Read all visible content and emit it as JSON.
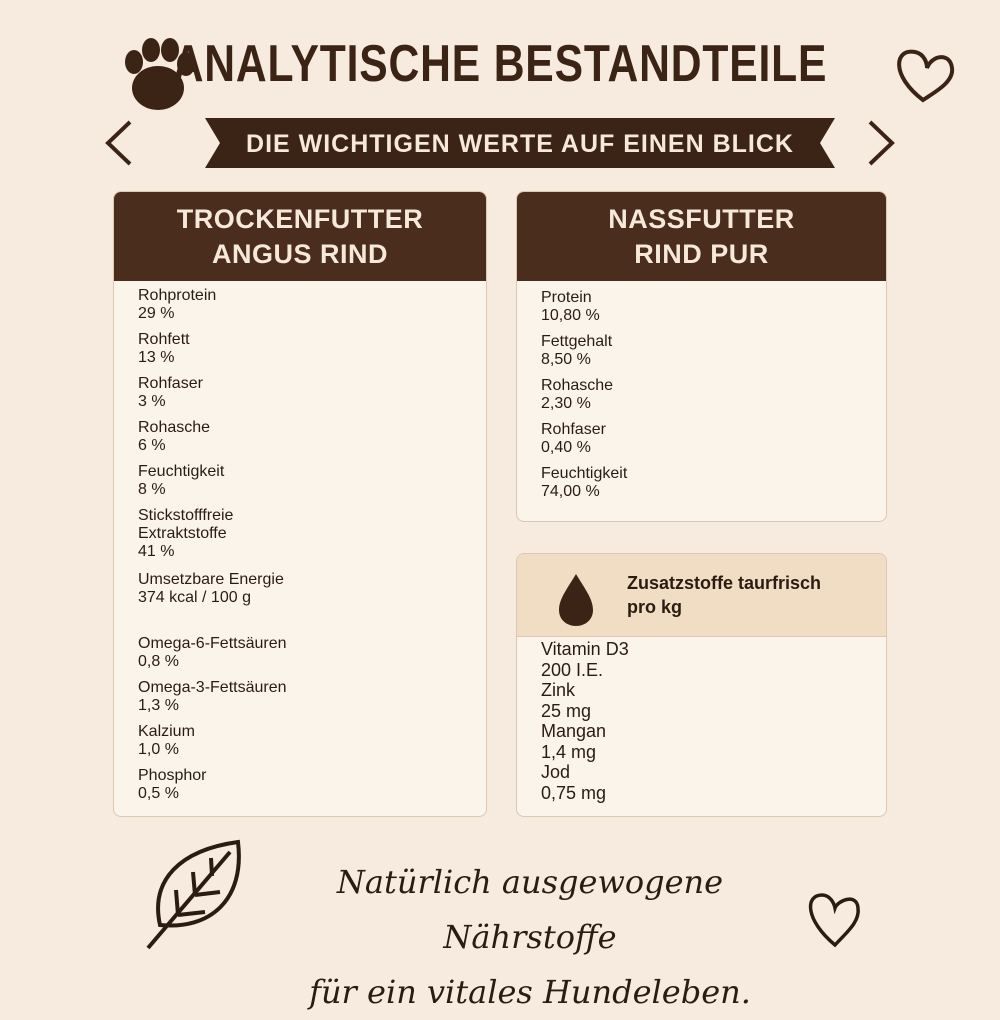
{
  "header": {
    "title": "ANALYTISCHE BESTANDTEILE",
    "subtitle": "DIE WICHTIGEN WERTE AUF EINEN BLICK"
  },
  "dry": {
    "title": [
      "TROCKENFUTTER",
      "ANGUS RIND"
    ],
    "rows": [
      {
        "label": [
          "Rohprotein"
        ],
        "value": "29 %"
      },
      {
        "label": [
          "Rohfett"
        ],
        "value": "13 %"
      },
      {
        "label": [
          "Rohfaser"
        ],
        "value": "3 %"
      },
      {
        "label": [
          "Rohasche"
        ],
        "value": "6 %"
      },
      {
        "label": [
          "Feuchtigkeit"
        ],
        "value": "8 %"
      },
      {
        "label": [
          "Stickstofffreie",
          "Extraktstoffe"
        ],
        "value": "41 %"
      },
      {
        "label": [
          "Umsetzbare Energie",
          "374 kcal / 100 g"
        ]
      },
      {
        "label": [
          "Omega-6-Fettsäuren"
        ],
        "value": "0,8 %"
      },
      {
        "label": [
          "Omega-3-Fettsäuren"
        ],
        "value": "1,3 %"
      },
      {
        "label": [
          "Kalzium"
        ],
        "value": "1,0 %"
      },
      {
        "label": [
          "Phosphor"
        ],
        "value": "0,5 %"
      }
    ]
  },
  "wet": {
    "title": [
      "NASSFUTTER",
      "RIND PUR"
    ],
    "rows": [
      {
        "label": [
          "Protein"
        ],
        "value": "10,80 %"
      },
      {
        "label": [
          "Fettgehalt"
        ],
        "value": "8,50 %"
      },
      {
        "label": [
          "Rohasche"
        ],
        "value": "2,30 %"
      },
      {
        "label": [
          "Rohfaser"
        ],
        "value": "0,40 %"
      },
      {
        "label": [
          "Feuchtigkeit"
        ],
        "value": "74,00 %"
      }
    ]
  },
  "additives": {
    "title": [
      "Zusatzstoffe taurfrisch",
      "pro kg"
    ],
    "rows": [
      {
        "label": [
          "Vitamin D3"
        ],
        "value": "200 I.E."
      },
      {
        "label": [
          "Zink"
        ],
        "value": "25 mg"
      },
      {
        "label": [
          "Mangan"
        ],
        "value": "1,4 mg"
      },
      {
        "label": [
          "Jod"
        ],
        "value": "0,75 mg"
      }
    ]
  },
  "footer": [
    "Natürlich ausgewogene Nährstoffe",
    "für ein vitales Hundeleben."
  ]
}
